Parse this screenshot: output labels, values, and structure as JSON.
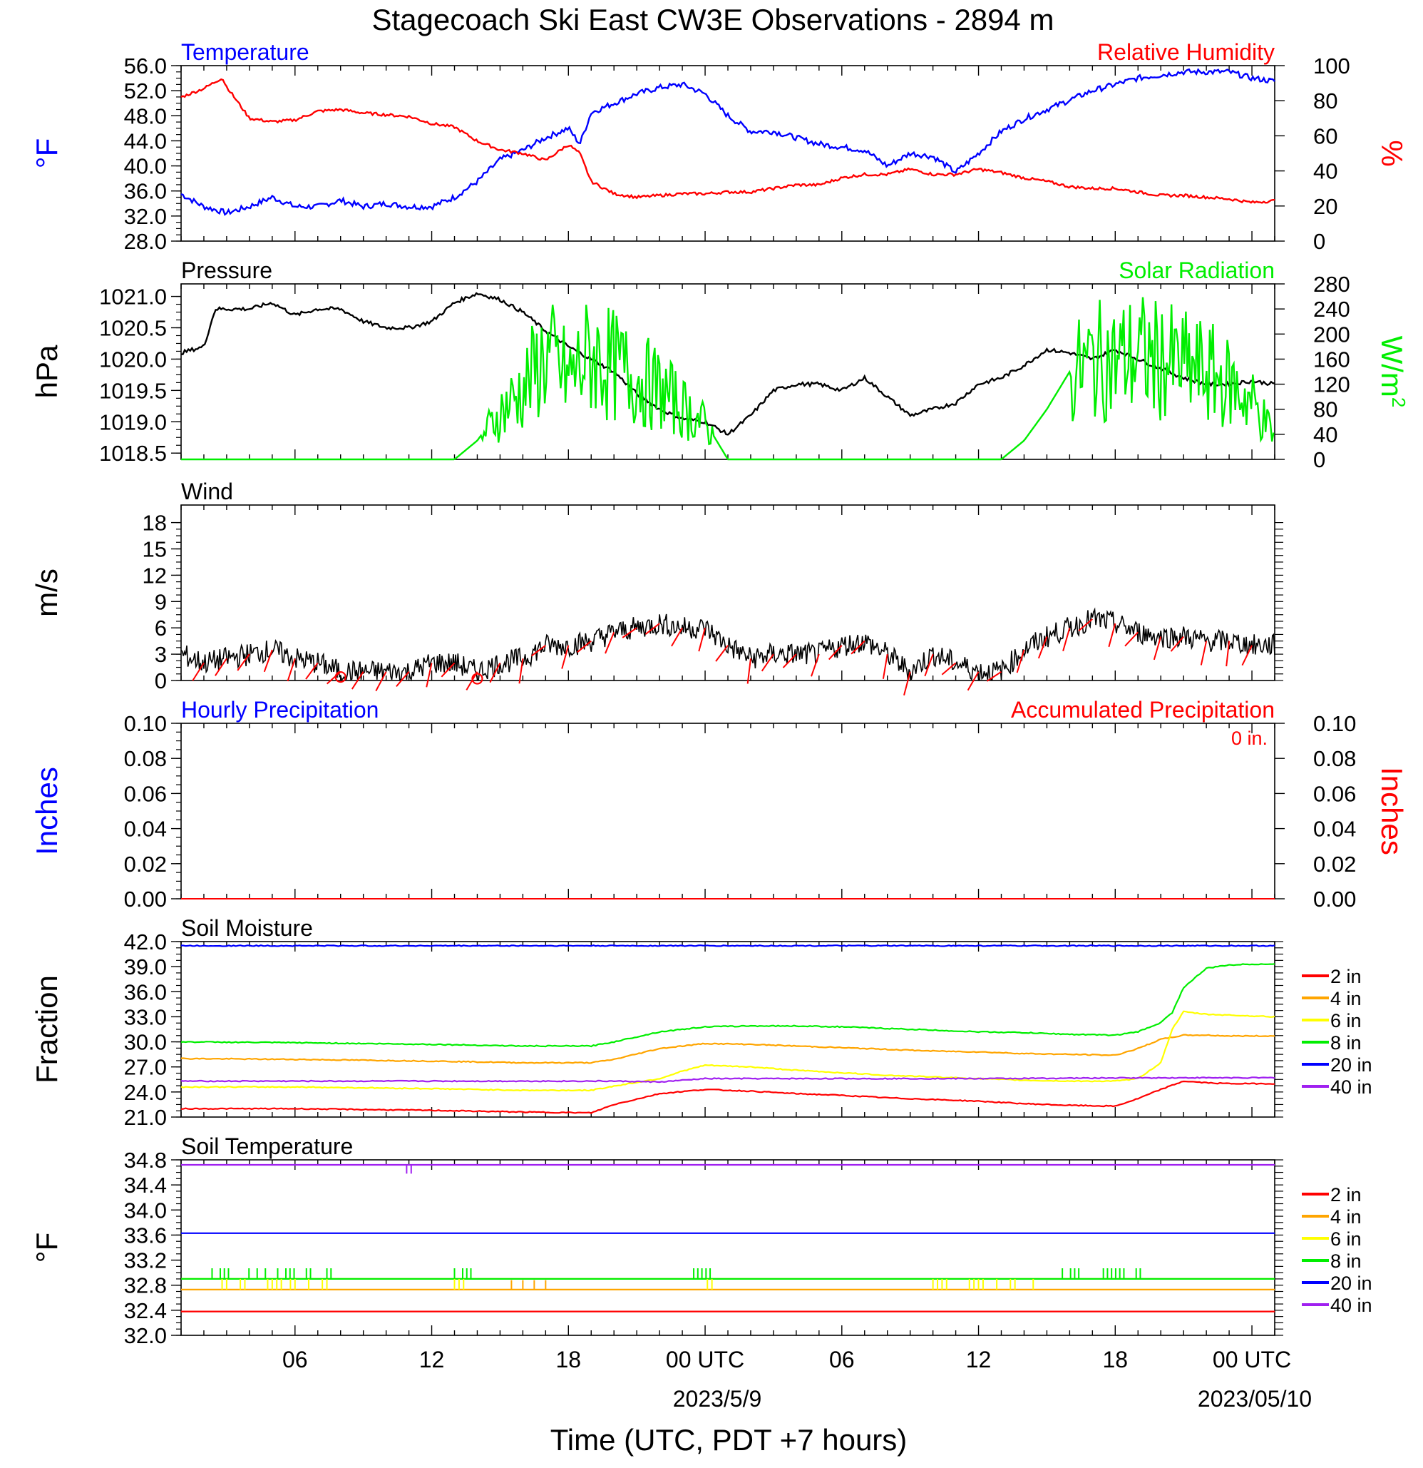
{
  "title": "Stagecoach Ski East CW3E Observations - 2894 m",
  "xaxis": {
    "label": "Time (UTC, PDT +7 hours)",
    "tick_labels": [
      "06",
      "12",
      "18",
      "00 UTC",
      "06",
      "12",
      "18",
      "00 UTC"
    ],
    "tick_hours": [
      6,
      12,
      18,
      24,
      30,
      36,
      42,
      48
    ],
    "date_labels": [
      "2023/5/9",
      "2023/05/10"
    ],
    "range_hours": [
      1,
      49
    ]
  },
  "colors": {
    "red": "#ff0000",
    "blue": "#0000ff",
    "green": "#00ee00",
    "black": "#000000",
    "orange": "#ffa500",
    "yellow": "#ffff00",
    "purple": "#a020f0"
  },
  "panels": {
    "temp_rh": {
      "title_left": "Temperature",
      "title_right": "Relative Humidity",
      "ylabel_left": "°F",
      "ylabel_right": "%",
      "ticks_left": [
        "28.0",
        "32.0",
        "36.0",
        "40.0",
        "44.0",
        "48.0",
        "52.0",
        "56.0"
      ],
      "ticks_right": [
        "0",
        "20",
        "40",
        "60",
        "80",
        "100"
      ]
    },
    "pressure": {
      "title_left": "Pressure",
      "title_right": "Solar Radiation",
      "ylabel_left": "hPa",
      "ylabel_right": "W/m",
      "ylabel_right_sup": "2",
      "ticks_left": [
        "1018.5",
        "1019.0",
        "1019.5",
        "1020.0",
        "1020.5",
        "1021.0"
      ],
      "ticks_right": [
        "0",
        "40",
        "80",
        "120",
        "160",
        "200",
        "240",
        "280"
      ]
    },
    "wind": {
      "title_left": "Wind",
      "ylabel_left": "m/s",
      "ticks_left": [
        "0",
        "3",
        "6",
        "9",
        "12",
        "15",
        "18"
      ]
    },
    "precip": {
      "title_left": "Hourly Precipitation",
      "title_right": "Accumulated Precipitation",
      "accum_text": "0 in.",
      "ylabel_left": "Inches",
      "ylabel_right": "Inches",
      "ticks_left": [
        "0.00",
        "0.02",
        "0.04",
        "0.06",
        "0.08",
        "0.10"
      ],
      "ticks_right": [
        "0.00",
        "0.02",
        "0.04",
        "0.06",
        "0.08",
        "0.10"
      ]
    },
    "soil_moisture": {
      "title_left": "Soil Moisture",
      "ylabel_left": "Fraction",
      "ticks_left": [
        "21.0",
        "24.0",
        "27.0",
        "30.0",
        "33.0",
        "36.0",
        "39.0",
        "42.0"
      ],
      "legend": [
        "2 in",
        "4 in",
        "6 in",
        "8 in",
        "20 in",
        "40 in"
      ]
    },
    "soil_temp": {
      "title_left": "Soil Temperature",
      "ylabel_left": "°F",
      "ticks_left": [
        "32.0",
        "32.4",
        "32.8",
        "33.2",
        "33.6",
        "34.0",
        "34.4",
        "34.8"
      ],
      "legend": [
        "2 in",
        "4 in",
        "6 in",
        "8 in",
        "20 in",
        "40 in"
      ]
    }
  },
  "chart_data": [
    {
      "type": "line",
      "name": "temp_rh",
      "x_units": "hours since 2023-05-08 00 UTC",
      "ylim_left": [
        28,
        56
      ],
      "ylim_right": [
        0,
        100
      ],
      "series": [
        {
          "name": "Temperature",
          "axis": "left",
          "color": "#0000ff",
          "x": [
            1,
            2,
            3,
            4,
            5,
            6,
            7,
            8,
            9,
            10,
            11,
            12,
            13,
            14,
            15,
            16,
            17,
            18,
            18.5,
            19,
            20,
            21,
            22,
            23,
            24,
            25,
            26,
            27,
            28,
            29,
            30,
            31,
            32,
            33,
            34,
            35,
            36,
            37,
            38,
            39,
            40,
            41,
            42,
            43,
            44,
            45,
            46,
            47,
            48,
            49
          ],
          "y": [
            35.5,
            33.5,
            32.5,
            33.5,
            35,
            33.5,
            33.5,
            34.5,
            33.5,
            34,
            33.5,
            33.5,
            35,
            37.5,
            41,
            42.5,
            44.5,
            46,
            43.5,
            48.5,
            50,
            51.5,
            52.5,
            53,
            51.5,
            48,
            45.5,
            45.5,
            44.5,
            43.5,
            43,
            42.5,
            40,
            42,
            41.5,
            39,
            42,
            45.5,
            47.5,
            49,
            50.5,
            52,
            53,
            54,
            54.5,
            55,
            55,
            55,
            54,
            53.5
          ]
        },
        {
          "name": "Relative Humidity",
          "axis": "right",
          "color": "#ff0000",
          "x": [
            1,
            2,
            2.8,
            3,
            4,
            5,
            6,
            7,
            8,
            9,
            10,
            11,
            12,
            13,
            14,
            15,
            16,
            17,
            18,
            18.5,
            19,
            20,
            21,
            22,
            23,
            24,
            25,
            26,
            27,
            28,
            29,
            30,
            31,
            32,
            33,
            34,
            35,
            36,
            37,
            38,
            39,
            40,
            41,
            42,
            43,
            44,
            45,
            46,
            47,
            48,
            49
          ],
          "y": [
            82,
            87,
            93,
            88,
            70,
            68,
            69,
            74,
            75,
            73,
            72,
            71,
            67,
            65,
            57,
            52,
            50,
            46,
            55,
            50,
            34,
            27,
            25,
            26,
            27,
            27,
            28,
            28,
            30,
            32,
            32,
            36,
            38,
            38,
            41,
            38,
            38,
            41,
            39,
            36,
            34,
            31,
            30,
            30,
            28,
            26,
            26,
            25,
            24,
            22,
            23
          ]
        }
      ]
    },
    {
      "type": "line",
      "name": "pressure_solar",
      "x_units": "hours since 2023-05-08 00 UTC",
      "ylim_left": [
        1018.4,
        1021.2
      ],
      "ylim_right": [
        0,
        280
      ],
      "series": [
        {
          "name": "Pressure",
          "axis": "left",
          "color": "#000000",
          "x": [
            1,
            2,
            2.5,
            3,
            4,
            5,
            6,
            7,
            8,
            9,
            10,
            11,
            12,
            13,
            14,
            15,
            16,
            17,
            18,
            19,
            20,
            21,
            22,
            23,
            24,
            25,
            26,
            27,
            28,
            29,
            30,
            31,
            32,
            33,
            34,
            35,
            36,
            37,
            38,
            39,
            40,
            41,
            42,
            43,
            44,
            45,
            46,
            47,
            48,
            49
          ],
          "y": [
            1020.1,
            1020.2,
            1020.8,
            1020.8,
            1020.8,
            1020.9,
            1020.7,
            1020.8,
            1020.8,
            1020.6,
            1020.5,
            1020.5,
            1020.6,
            1020.9,
            1021.05,
            1020.95,
            1020.75,
            1020.45,
            1020.2,
            1020.0,
            1019.8,
            1019.45,
            1019.2,
            1019.05,
            1019.0,
            1018.8,
            1019.1,
            1019.5,
            1019.6,
            1019.6,
            1019.5,
            1019.7,
            1019.4,
            1019.1,
            1019.2,
            1019.3,
            1019.6,
            1019.7,
            1019.9,
            1020.15,
            1020.1,
            1020.0,
            1020.15,
            1020.0,
            1019.85,
            1019.7,
            1019.6,
            1019.6,
            1019.65,
            1019.6
          ]
        },
        {
          "name": "Solar Radiation",
          "axis": "right",
          "color": "#00ee00",
          "x": [
            1,
            13,
            14,
            15,
            16,
            17,
            18,
            19,
            20,
            21,
            22,
            23,
            24,
            25,
            26,
            37,
            38,
            39,
            40,
            41,
            42,
            43,
            44,
            45,
            46,
            47,
            48,
            49
          ],
          "y": [
            0,
            0,
            30,
            80,
            120,
            180,
            140,
            180,
            160,
            140,
            120,
            90,
            60,
            0,
            0,
            0,
            30,
            80,
            140,
            170,
            170,
            180,
            170,
            160,
            150,
            130,
            100,
            40
          ]
        }
      ]
    },
    {
      "type": "line",
      "name": "wind",
      "x_units": "hours since 2023-05-08 00 UTC",
      "ylim": [
        0,
        20
      ],
      "series": [
        {
          "name": "Wind",
          "color": "#000000",
          "x": [
            1,
            2,
            3,
            4,
            5,
            6,
            7,
            8,
            9,
            10,
            11,
            12,
            13,
            14,
            15,
            16,
            17,
            18,
            19,
            20,
            21,
            22,
            23,
            24,
            25,
            26,
            27,
            28,
            29,
            30,
            31,
            32,
            33,
            34,
            35,
            36,
            37,
            38,
            39,
            40,
            41,
            42,
            43,
            44,
            45,
            46,
            47,
            48,
            49
          ],
          "y": [
            3,
            2,
            2.5,
            3,
            3.5,
            2.5,
            2,
            1,
            1,
            1,
            1,
            2,
            2,
            1,
            2,
            2.5,
            4,
            4,
            4.5,
            5.5,
            6,
            6.5,
            6,
            6,
            4,
            2.5,
            3,
            3,
            3,
            4,
            4.5,
            3,
            1,
            3,
            2,
            1,
            1,
            3.5,
            5,
            6,
            7,
            6.5,
            5.5,
            5,
            5,
            4.5,
            4.5,
            4,
            4
          ]
        }
      ]
    },
    {
      "type": "line",
      "name": "precip",
      "ylim": [
        0,
        0.1
      ],
      "series": [
        {
          "name": "Hourly Precipitation",
          "color": "#0000ff",
          "x": [
            1,
            49
          ],
          "y": [
            0,
            0
          ]
        },
        {
          "name": "Accumulated Precipitation",
          "color": "#ff0000",
          "x": [
            1,
            49
          ],
          "y": [
            0,
            0
          ]
        }
      ]
    },
    {
      "type": "line",
      "name": "soil_moisture",
      "x_units": "hours since 2023-05-08 00 UTC",
      "ylim": [
        21,
        42
      ],
      "series": [
        {
          "name": "2 in",
          "color": "#ff0000",
          "x": [
            1,
            6,
            12,
            16,
            19,
            20,
            22,
            24,
            26,
            28,
            30,
            32,
            34,
            36,
            38,
            40,
            42,
            43,
            44,
            45,
            46,
            47,
            48,
            49
          ],
          "y": [
            22,
            22,
            21.8,
            21.6,
            21.5,
            22.5,
            23.8,
            24.3,
            24.1,
            23.8,
            23.6,
            23.3,
            23.1,
            22.9,
            22.6,
            22.4,
            22.3,
            23.2,
            24.3,
            25.3,
            25.1,
            25,
            25,
            25
          ]
        },
        {
          "name": "4 in",
          "color": "#ffa500",
          "x": [
            1,
            6,
            12,
            16,
            19,
            20,
            22,
            24,
            26,
            28,
            30,
            32,
            34,
            36,
            38,
            40,
            42,
            43,
            44,
            45,
            46,
            47,
            48,
            49
          ],
          "y": [
            28,
            27.9,
            27.7,
            27.5,
            27.5,
            27.9,
            29.2,
            29.8,
            29.7,
            29.5,
            29.3,
            29.1,
            28.9,
            28.8,
            28.6,
            28.5,
            28.4,
            29.2,
            30.3,
            30.8,
            30.8,
            30.7,
            30.7,
            30.7
          ]
        },
        {
          "name": "6 in",
          "color": "#ffff00",
          "x": [
            1,
            6,
            12,
            16,
            19,
            20,
            22,
            23,
            24,
            26,
            28,
            30,
            32,
            34,
            36,
            38,
            40,
            42,
            43,
            44,
            44.5,
            45,
            46,
            47,
            48,
            49
          ],
          "y": [
            24.6,
            24.6,
            24.4,
            24.2,
            24.2,
            24.7,
            25.6,
            26.5,
            27.2,
            27,
            26.6,
            26.3,
            26,
            25.8,
            25.6,
            25.4,
            25.3,
            25.3,
            25.6,
            27.5,
            31.5,
            33.6,
            33.3,
            33.2,
            33.1,
            33
          ]
        },
        {
          "name": "8 in",
          "color": "#00ee00",
          "x": [
            1,
            6,
            12,
            16,
            19,
            20,
            22,
            24,
            26,
            28,
            30,
            32,
            34,
            36,
            38,
            40,
            42,
            43,
            44,
            44.5,
            45,
            46,
            47,
            48,
            49
          ],
          "y": [
            30,
            29.9,
            29.7,
            29.5,
            29.5,
            30,
            31.2,
            31.8,
            31.9,
            31.9,
            31.8,
            31.6,
            31.4,
            31.2,
            31.1,
            30.9,
            30.8,
            31.2,
            32.3,
            33.5,
            36.5,
            38.8,
            39.2,
            39.3,
            39.3
          ]
        },
        {
          "name": "20 in",
          "color": "#0000ff",
          "x": [
            1,
            49
          ],
          "y": [
            41.5,
            41.5
          ]
        },
        {
          "name": "40 in",
          "color": "#a020f0",
          "x": [
            1,
            20,
            22,
            23,
            24,
            28,
            36,
            44,
            49
          ],
          "y": [
            25.3,
            25.3,
            25.2,
            25.4,
            25.6,
            25.6,
            25.6,
            25.7,
            25.7
          ]
        }
      ]
    },
    {
      "type": "line",
      "name": "soil_temperature",
      "ylim": [
        32.0,
        34.8
      ],
      "series": [
        {
          "name": "2 in",
          "color": "#ff0000",
          "x": [
            1,
            49
          ],
          "y": [
            32.38,
            32.38
          ]
        },
        {
          "name": "4 in",
          "color": "#ffa500",
          "x": [
            1,
            49
          ],
          "y": [
            32.73,
            32.73
          ]
        },
        {
          "name": "6 in",
          "color": "#ffff00",
          "x": [
            1,
            49
          ],
          "y": [
            32.9,
            32.9
          ]
        },
        {
          "name": "8 in",
          "color": "#00ee00",
          "x": [
            1,
            49
          ],
          "y": [
            32.9,
            32.9
          ]
        },
        {
          "name": "20 in",
          "color": "#0000ff",
          "x": [
            1,
            49
          ],
          "y": [
            33.63,
            33.63
          ]
        },
        {
          "name": "40 in",
          "color": "#a020f0",
          "x": [
            1,
            49
          ],
          "y": [
            34.72,
            34.72
          ]
        }
      ]
    }
  ]
}
